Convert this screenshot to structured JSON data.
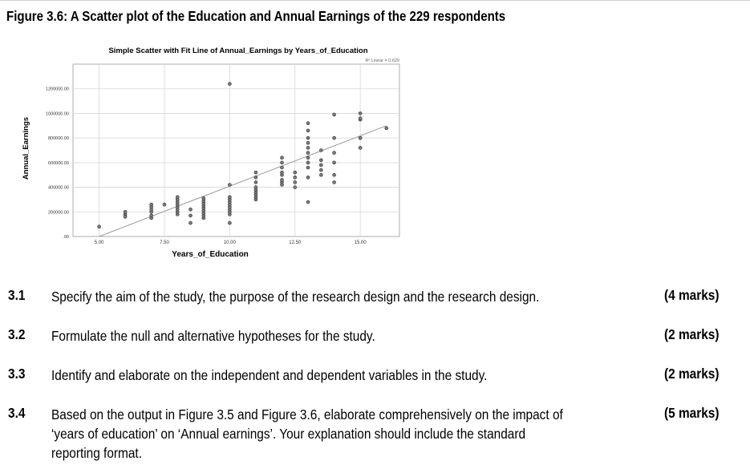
{
  "figure_title": "Figure 3.6: A Scatter plot of the Education and Annual Earnings of the 229 respondents",
  "chart_data": {
    "type": "scatter",
    "title": "Simple Scatter with Fit Line of Annual_Earnings by Years_of_Education",
    "xlabel": "Years_of_Education",
    "ylabel": "Annual_Earnings",
    "xlim": [
      4.0,
      16.5
    ],
    "ylim": [
      0,
      1400000
    ],
    "x_ticks": [
      "5.00",
      "7.50",
      "10.00",
      "12.50",
      "15.00"
    ],
    "y_ticks": [
      ".00",
      "200000.00",
      "400000.00",
      "600000.00",
      "800000.00",
      "1000000.00",
      "1200000.00"
    ],
    "grid": true,
    "fit_line": {
      "label": "R² Linear = 0.629",
      "from": [
        5.0,
        0
      ],
      "to": [
        16.0,
        900000
      ]
    },
    "points": [
      [
        5.0,
        80000
      ],
      [
        6.0,
        180000
      ],
      [
        6.0,
        200000
      ],
      [
        6.0,
        160000
      ],
      [
        7.0,
        150000
      ],
      [
        7.0,
        170000
      ],
      [
        7.0,
        200000
      ],
      [
        7.0,
        220000
      ],
      [
        7.0,
        240000
      ],
      [
        7.0,
        260000
      ],
      [
        7.5,
        260000
      ],
      [
        8.0,
        180000
      ],
      [
        8.0,
        200000
      ],
      [
        8.0,
        220000
      ],
      [
        8.0,
        240000
      ],
      [
        8.0,
        260000
      ],
      [
        8.0,
        280000
      ],
      [
        8.0,
        300000
      ],
      [
        8.0,
        320000
      ],
      [
        8.5,
        220000
      ],
      [
        8.5,
        170000
      ],
      [
        8.5,
        110000
      ],
      [
        9.0,
        150000
      ],
      [
        9.0,
        170000
      ],
      [
        9.0,
        190000
      ],
      [
        9.0,
        210000
      ],
      [
        9.0,
        230000
      ],
      [
        9.0,
        250000
      ],
      [
        9.0,
        270000
      ],
      [
        9.0,
        290000
      ],
      [
        9.0,
        310000
      ],
      [
        10.0,
        110000
      ],
      [
        10.0,
        180000
      ],
      [
        10.0,
        200000
      ],
      [
        10.0,
        220000
      ],
      [
        10.0,
        240000
      ],
      [
        10.0,
        260000
      ],
      [
        10.0,
        280000
      ],
      [
        10.0,
        300000
      ],
      [
        10.0,
        320000
      ],
      [
        10.0,
        420000
      ],
      [
        10.0,
        1240000
      ],
      [
        11.0,
        300000
      ],
      [
        11.0,
        320000
      ],
      [
        11.0,
        340000
      ],
      [
        11.0,
        360000
      ],
      [
        11.0,
        380000
      ],
      [
        11.0,
        400000
      ],
      [
        11.0,
        440000
      ],
      [
        11.0,
        480000
      ],
      [
        11.0,
        520000
      ],
      [
        12.0,
        420000
      ],
      [
        12.0,
        440000
      ],
      [
        12.0,
        460000
      ],
      [
        12.0,
        500000
      ],
      [
        12.0,
        520000
      ],
      [
        12.0,
        560000
      ],
      [
        12.0,
        600000
      ],
      [
        12.0,
        640000
      ],
      [
        12.5,
        400000
      ],
      [
        12.5,
        440000
      ],
      [
        12.5,
        480000
      ],
      [
        12.5,
        520000
      ],
      [
        13.0,
        280000
      ],
      [
        13.0,
        480000
      ],
      [
        13.0,
        560000
      ],
      [
        13.0,
        600000
      ],
      [
        13.0,
        640000
      ],
      [
        13.0,
        680000
      ],
      [
        13.0,
        720000
      ],
      [
        13.0,
        760000
      ],
      [
        13.0,
        800000
      ],
      [
        13.0,
        860000
      ],
      [
        13.0,
        920000
      ],
      [
        13.5,
        500000
      ],
      [
        13.5,
        540000
      ],
      [
        13.5,
        580000
      ],
      [
        13.5,
        620000
      ],
      [
        13.5,
        700000
      ],
      [
        14.0,
        440000
      ],
      [
        14.0,
        500000
      ],
      [
        14.0,
        600000
      ],
      [
        14.0,
        680000
      ],
      [
        14.0,
        800000
      ],
      [
        14.0,
        990000
      ],
      [
        15.0,
        720000
      ],
      [
        15.0,
        800000
      ],
      [
        15.0,
        950000
      ],
      [
        15.0,
        960000
      ],
      [
        15.0,
        1000000
      ],
      [
        16.0,
        880000
      ]
    ]
  },
  "questions": [
    {
      "num": "3.1",
      "text": "Specify the aim of the study, the purpose of the research design and the research design.",
      "marks": "(4 marks)"
    },
    {
      "num": "3.2",
      "text": "Formulate the null and alternative hypotheses for the study.",
      "marks": "(2 marks)"
    },
    {
      "num": "3.3",
      "text": "Identify and elaborate on the independent and dependent variables in the study.",
      "marks": "(2 marks)"
    },
    {
      "num": "3.4",
      "text": "Based on the output in Figure 3.5 and Figure 3.6, elaborate comprehensively on the impact of ‘years of education’ on ‘Annual earnings’. Your explanation should include the standard reporting format.",
      "marks": "(5 marks)"
    }
  ]
}
